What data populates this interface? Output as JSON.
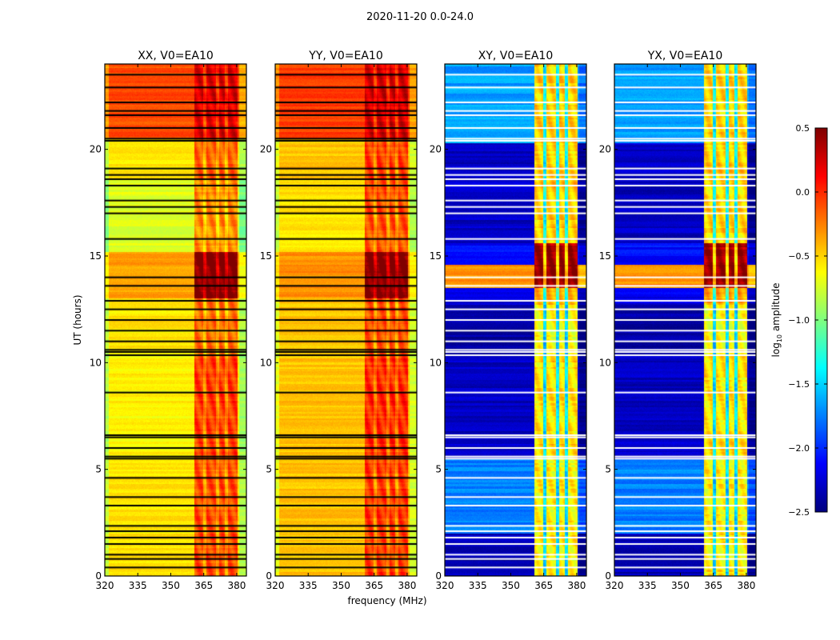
{
  "chart_data": {
    "type": "heatmap",
    "title": "2020-11-20 0.0-24.0",
    "xlabel": "frequency (MHz)",
    "ylabel": "UT (hours)",
    "xlim": [
      320,
      384.4
    ],
    "ylim": [
      0,
      24
    ],
    "xticks": [
      "320",
      "335",
      "350",
      "365",
      "380"
    ],
    "yticks": [
      "0",
      "5",
      "10",
      "15",
      "20"
    ],
    "flagged_ut": [
      0.4,
      0.8,
      1.0,
      1.5,
      1.8,
      2.1,
      2.35,
      3.3,
      3.7,
      4.6,
      5.5,
      5.6,
      6.0,
      6.5,
      6.6,
      8.6,
      10.35,
      10.5,
      10.6,
      11.0,
      11.5,
      12.0,
      12.5,
      12.9,
      13.6,
      14.0,
      15.8,
      17.0,
      17.3,
      17.6,
      18.3,
      18.6,
      18.8,
      19.1,
      20.4,
      20.5,
      21.0,
      21.6,
      21.8,
      22.2,
      22.9,
      23.5
    ],
    "band_freq": [
      360.8,
      380.4
    ],
    "notch_freqs": [
      365.5,
      371.3,
      375.3
    ],
    "panels": [
      {
        "title": "XX, V0=EA10",
        "flag_color": "#000000",
        "segments": [
          {
            "ut": [
              0,
              5.5
            ],
            "base": -0.55,
            "band": 0.45
          },
          {
            "ut": [
              5.5,
              10.4
            ],
            "base": -0.6,
            "band": 0.55
          },
          {
            "ut": [
              10.4,
              13.0
            ],
            "base": -0.55,
            "band": 0.35
          },
          {
            "ut": [
              13.0,
              15.2
            ],
            "base": -0.35,
            "band": 0.85
          },
          {
            "ut": [
              15.2,
              18.6
            ],
            "base": -0.72,
            "band": 0.45
          },
          {
            "ut": [
              18.6,
              20.5
            ],
            "base": -0.55,
            "band": 0.4
          },
          {
            "ut": [
              20.5,
              24
            ],
            "base": -0.1,
            "band": 0.3
          }
        ]
      },
      {
        "title": "YY, V0=EA10",
        "flag_color": "#000000",
        "segments": [
          {
            "ut": [
              0,
              5.5
            ],
            "base": -0.45,
            "band": 0.4
          },
          {
            "ut": [
              5.5,
              10.4
            ],
            "base": -0.45,
            "band": 0.45
          },
          {
            "ut": [
              10.4,
              13.0
            ],
            "base": -0.45,
            "band": 0.35
          },
          {
            "ut": [
              13.0,
              15.2
            ],
            "base": -0.3,
            "band": 0.8
          },
          {
            "ut": [
              15.2,
              18.6
            ],
            "base": -0.55,
            "band": 0.45
          },
          {
            "ut": [
              18.6,
              20.5
            ],
            "base": -0.45,
            "band": 0.4
          },
          {
            "ut": [
              20.5,
              24
            ],
            "base": -0.05,
            "band": 0.3
          }
        ]
      },
      {
        "title": "XY, V0=EA10",
        "flag_color": "#ffffff",
        "segments": [
          {
            "ut": [
              0,
              2.0
            ],
            "base": -2.35,
            "band": 1.75
          },
          {
            "ut": [
              2.0,
              5.5
            ],
            "base": -1.75,
            "band": 1.15
          },
          {
            "ut": [
              5.5,
              10.4
            ],
            "base": -2.3,
            "band": 1.75
          },
          {
            "ut": [
              10.4,
              12.7
            ],
            "base": -2.4,
            "band": 1.75
          },
          {
            "ut": [
              12.7,
              13.5
            ],
            "base": -2.2,
            "band": 1.8
          },
          {
            "ut": [
              13.5,
              14.6
            ],
            "base": -0.3,
            "band": 0.75
          },
          {
            "ut": [
              14.6,
              15.6
            ],
            "base": -2.1,
            "band": 2.5
          },
          {
            "ut": [
              15.6,
              20.3
            ],
            "base": -2.3,
            "band": 1.8
          },
          {
            "ut": [
              20.3,
              24
            ],
            "base": -1.65,
            "band": 1.15
          }
        ]
      },
      {
        "title": "YX, V0=EA10",
        "flag_color": "#ffffff",
        "segments": [
          {
            "ut": [
              0,
              2.0
            ],
            "base": -2.35,
            "band": 1.75
          },
          {
            "ut": [
              2.0,
              5.5
            ],
            "base": -1.75,
            "band": 1.15
          },
          {
            "ut": [
              5.5,
              10.4
            ],
            "base": -2.3,
            "band": 1.75
          },
          {
            "ut": [
              10.4,
              12.7
            ],
            "base": -2.4,
            "band": 1.75
          },
          {
            "ut": [
              12.7,
              13.5
            ],
            "base": -2.2,
            "band": 1.8
          },
          {
            "ut": [
              13.5,
              14.6
            ],
            "base": -0.3,
            "band": 0.75
          },
          {
            "ut": [
              14.6,
              15.6
            ],
            "base": -2.1,
            "band": 2.5
          },
          {
            "ut": [
              15.6,
              20.3
            ],
            "base": -2.3,
            "band": 1.8
          },
          {
            "ut": [
              20.3,
              24
            ],
            "base": -1.65,
            "band": 1.15
          }
        ]
      }
    ],
    "colorbar": {
      "label": "log",
      "label_sub": "10",
      "label_rest": " amplitude",
      "vmin": -2.5,
      "vmax": 0.5,
      "ticks": [
        "0.5",
        "0.0",
        "−0.5",
        "−1.0",
        "−1.5",
        "−2.0",
        "−2.5"
      ],
      "tick_values": [
        0.5,
        0.0,
        -0.5,
        -1.0,
        -1.5,
        -2.0,
        -2.5
      ],
      "colormap": "jet"
    }
  }
}
